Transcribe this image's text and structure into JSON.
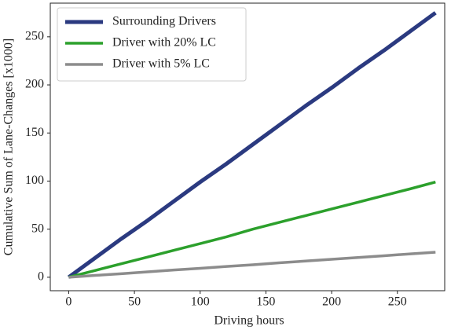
{
  "chart_data": {
    "type": "line",
    "xlabel": "Driving hours",
    "ylabel": "Cumulative Sum of Lane-Changes [x1000]",
    "x": [
      0,
      20,
      40,
      60,
      80,
      100,
      120,
      140,
      160,
      180,
      200,
      220,
      240,
      260,
      279
    ],
    "series": [
      {
        "name": "Surrounding Drivers",
        "color": "#2b3a80",
        "width": 5,
        "values": [
          0,
          20,
          40,
          59,
          79,
          99,
          118,
          138,
          158,
          178,
          197,
          217,
          236,
          256,
          275
        ]
      },
      {
        "name": "Driver with 20% LC",
        "color": "#2ca02c",
        "width": 3.5,
        "values": [
          0,
          7,
          14,
          21,
          28,
          35,
          42,
          50,
          57,
          64,
          71,
          78,
          85,
          92,
          99
        ]
      },
      {
        "name": "Driver with 5% LC",
        "color": "#8c8c8c",
        "width": 3.5,
        "values": [
          0,
          1.9,
          3.7,
          5.6,
          7.5,
          9.3,
          11.2,
          13,
          15,
          16.8,
          18.7,
          20.5,
          22.4,
          24.3,
          26
        ]
      }
    ],
    "xlim": [
      -14,
      286
    ],
    "xticks": [
      0,
      50,
      100,
      150,
      200,
      250
    ],
    "ylim": [
      -14,
      285
    ],
    "yticks": [
      0,
      50,
      100,
      150,
      200,
      250
    ],
    "legend": "upper left",
    "grid": false
  }
}
